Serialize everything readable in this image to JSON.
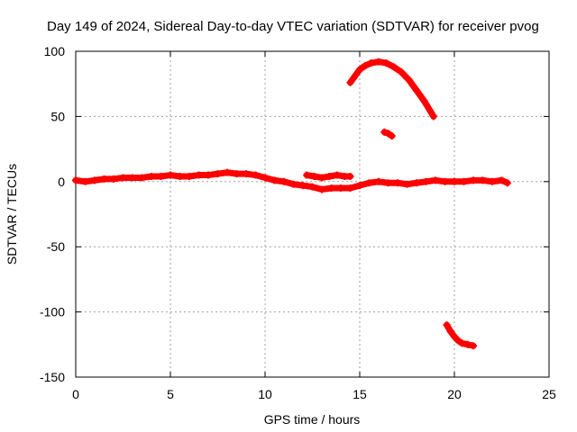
{
  "chart_data": {
    "type": "scatter",
    "title": "Day 149 of 2024, Sidereal Day-to-day VTEC variation (SDTVAR) for receiver pvog",
    "xlabel": "GPS time / hours",
    "ylabel": "SDTVAR / TECUs",
    "xlim": [
      0,
      25
    ],
    "ylim": [
      -150,
      100
    ],
    "xticks": [
      0,
      5,
      10,
      15,
      20,
      25
    ],
    "yticks": [
      -150,
      -100,
      -50,
      0,
      50,
      100
    ],
    "xtick_labels": [
      "0",
      "5",
      "10",
      "15",
      "20",
      "25"
    ],
    "ytick_labels": [
      "-150",
      "-100",
      "-50",
      "0",
      "50",
      "100"
    ],
    "grid": true,
    "series": [
      {
        "name": "main band",
        "color": "#ff0000",
        "x": [
          0,
          0.5,
          1,
          1.5,
          2,
          2.5,
          3,
          3.5,
          4,
          4.5,
          5,
          5.5,
          6,
          6.5,
          7,
          7.5,
          8,
          8.5,
          9,
          9.5,
          10,
          10.5,
          11,
          11.5,
          12,
          12.5,
          13,
          13.5,
          14,
          14.5,
          15,
          15.5,
          16,
          16.5,
          17,
          17.5,
          18,
          18.5,
          19,
          19.5,
          20,
          20.5,
          21,
          21.5,
          22,
          22.5,
          22.8
        ],
        "y": [
          1,
          0,
          1,
          2,
          2,
          3,
          3,
          3,
          4,
          4,
          5,
          4,
          4,
          5,
          5,
          6,
          7,
          6,
          6,
          5,
          3,
          1,
          0,
          -2,
          -3,
          -4,
          -6,
          -5,
          -5,
          -5,
          -3,
          -1,
          0,
          -1,
          -1,
          -2,
          -1,
          0,
          1,
          0,
          0,
          0,
          1,
          1,
          0,
          1,
          -1
        ]
      },
      {
        "name": "short arc ~12-14.5h",
        "color": "#ff0000",
        "x": [
          12.2,
          12.6,
          13,
          13.4,
          13.8,
          14.2,
          14.5
        ],
        "y": [
          5,
          4,
          3,
          4,
          5,
          4,
          4
        ]
      },
      {
        "name": "upper arc",
        "color": "#ff0000",
        "x": [
          14.5,
          14.8,
          15,
          15.3,
          15.6,
          16,
          16.4,
          16.8,
          17.2,
          17.6,
          18,
          18.4,
          18.9
        ],
        "y": [
          76,
          82,
          86,
          89,
          91,
          92,
          91,
          88,
          84,
          78,
          70,
          62,
          50
        ]
      },
      {
        "name": "short segment ~16.3h",
        "color": "#ff0000",
        "x": [
          16.3,
          16.5,
          16.7
        ],
        "y": [
          38,
          37,
          35
        ]
      },
      {
        "name": "lower arc",
        "color": "#ff0000",
        "x": [
          19.6,
          19.8,
          20,
          20.2,
          20.4,
          20.7,
          21
        ],
        "y": [
          -110,
          -115,
          -119,
          -122,
          -124,
          -125,
          -126
        ]
      }
    ]
  }
}
